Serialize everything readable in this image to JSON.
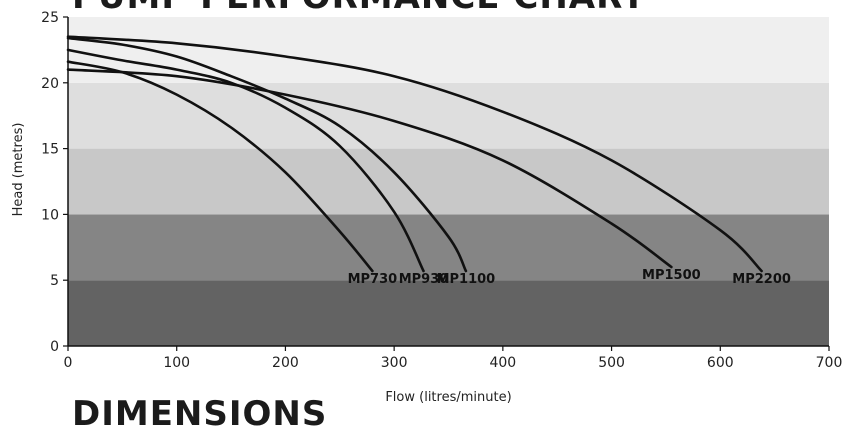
{
  "page": {
    "heading": "PUMP PERFORMANCE CHART",
    "footer_heading": "DIMENSIONS"
  },
  "chart_data": {
    "type": "line",
    "title": "PUMP PERFORMANCE CHART",
    "xlabel": "Flow (litres/minute)",
    "ylabel": "Head (metres)",
    "xlim": [
      0,
      700
    ],
    "ylim": [
      0,
      25
    ],
    "xticks": [
      0,
      100,
      200,
      300,
      400,
      500,
      600,
      700
    ],
    "yticks": [
      0,
      5,
      10,
      15,
      20,
      25
    ],
    "bands": [
      {
        "from": 0,
        "to": 5,
        "color": "#636363"
      },
      {
        "from": 5,
        "to": 10,
        "color": "#858585"
      },
      {
        "from": 10,
        "to": 15,
        "color": "#c8c8c8"
      },
      {
        "from": 15,
        "to": 20,
        "color": "#dedede"
      },
      {
        "from": 20,
        "to": 25,
        "color": "#efefef"
      }
    ],
    "line_color": "#111111",
    "series": [
      {
        "name": "MP730",
        "x": [
          0,
          50,
          100,
          150,
          200,
          250,
          280
        ],
        "y": [
          21.6,
          20.8,
          19.1,
          16.6,
          13.2,
          8.7,
          5.7
        ]
      },
      {
        "name": "MP930",
        "x": [
          0,
          50,
          100,
          150,
          200,
          250,
          300,
          327
        ],
        "y": [
          22.5,
          21.7,
          21.0,
          20.0,
          18.1,
          15.2,
          10.2,
          5.7
        ]
      },
      {
        "name": "MP1100",
        "x": [
          0,
          50,
          100,
          150,
          200,
          250,
          300,
          350,
          366
        ],
        "y": [
          23.4,
          22.9,
          22.0,
          20.5,
          18.8,
          16.7,
          13.2,
          8.3,
          5.7
        ]
      },
      {
        "name": "MP1500",
        "x": [
          0,
          100,
          200,
          300,
          400,
          500,
          555
        ],
        "y": [
          21.0,
          20.5,
          19.1,
          17.1,
          14.1,
          9.3,
          6.0
        ]
      },
      {
        "name": "MP2200",
        "x": [
          0,
          100,
          200,
          300,
          400,
          500,
          600,
          638
        ],
        "y": [
          23.5,
          23.0,
          22.0,
          20.5,
          17.8,
          14.1,
          8.8,
          5.7
        ]
      }
    ]
  }
}
